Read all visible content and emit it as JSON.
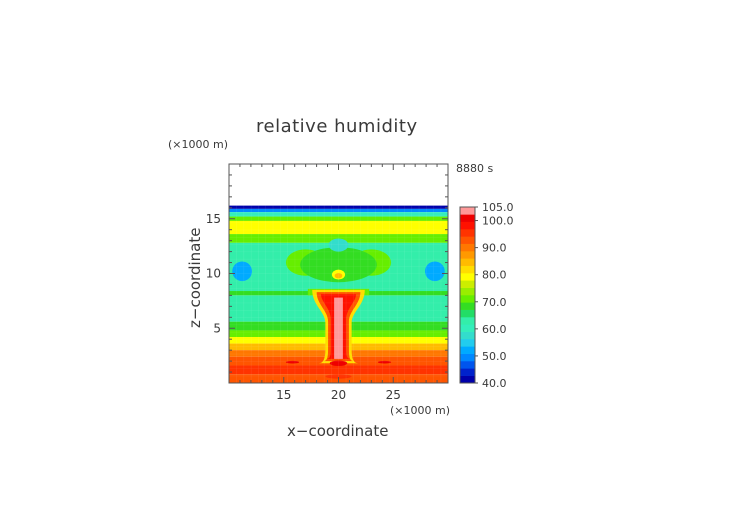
{
  "chart_data": {
    "type": "heatmap",
    "title": "relative humidity",
    "xlabel": "x−coordinate",
    "ylabel": "z−coordinate",
    "x_unit": "(×1000 m)",
    "y_unit": "(×1000 m)",
    "time_label": "8880 s",
    "xlim": [
      10,
      30
    ],
    "ylim": [
      0,
      20
    ],
    "x_ticks": [
      15,
      20,
      25
    ],
    "y_ticks": [
      5,
      10,
      15
    ],
    "colorbar": {
      "min": 40,
      "max": 105,
      "tick_labels": [
        "105.0",
        "100.0",
        "90.0",
        "80.0",
        "70.0",
        "60.0",
        "50.0",
        "40.0"
      ],
      "tick_values": [
        105,
        100,
        90,
        80,
        70,
        60,
        50,
        40
      ],
      "level_colors": [
        "#0000aa",
        "#0022cc",
        "#0055ee",
        "#0088ff",
        "#00aaff",
        "#22ccee",
        "#33ddcc",
        "#33eebb",
        "#33eeaa",
        "#22dd66",
        "#33dd22",
        "#66ee00",
        "#99ee00",
        "#ccee00",
        "#ffff00",
        "#ffdd00",
        "#ffbb00",
        "#ff9900",
        "#ff7700",
        "#ff5500",
        "#ff3300",
        "#ff1100",
        "#ee0000",
        "#ff9999"
      ]
    },
    "bands": [
      {
        "z0": 16.2,
        "z1": 20.0,
        "value": null
      },
      {
        "z0": 15.9,
        "z1": 16.2,
        "value": 42
      },
      {
        "z0": 15.6,
        "z1": 15.9,
        "value": 50
      },
      {
        "z0": 15.2,
        "z1": 15.6,
        "value": 60
      },
      {
        "z0": 14.8,
        "z1": 15.2,
        "value": 70
      },
      {
        "z0": 13.6,
        "z1": 14.8,
        "value": 78
      },
      {
        "z0": 12.8,
        "z1": 13.6,
        "value": 70
      },
      {
        "z0": 8.4,
        "z1": 12.8,
        "value": 62
      },
      {
        "z0": 8.0,
        "z1": 8.4,
        "value": 68
      },
      {
        "z0": 5.6,
        "z1": 8.0,
        "value": 63
      },
      {
        "z0": 4.8,
        "z1": 5.6,
        "value": 68
      },
      {
        "z0": 4.2,
        "z1": 4.8,
        "value": 72
      },
      {
        "z0": 3.6,
        "z1": 4.2,
        "value": 80
      },
      {
        "z0": 3.0,
        "z1": 3.6,
        "value": 86
      },
      {
        "z0": 2.4,
        "z1": 3.0,
        "value": 90
      },
      {
        "z0": 1.6,
        "z1": 2.4,
        "value": 94
      },
      {
        "z0": 0.8,
        "z1": 1.6,
        "value": 96
      },
      {
        "z0": 0.0,
        "z1": 0.8,
        "value": 92
      }
    ]
  }
}
